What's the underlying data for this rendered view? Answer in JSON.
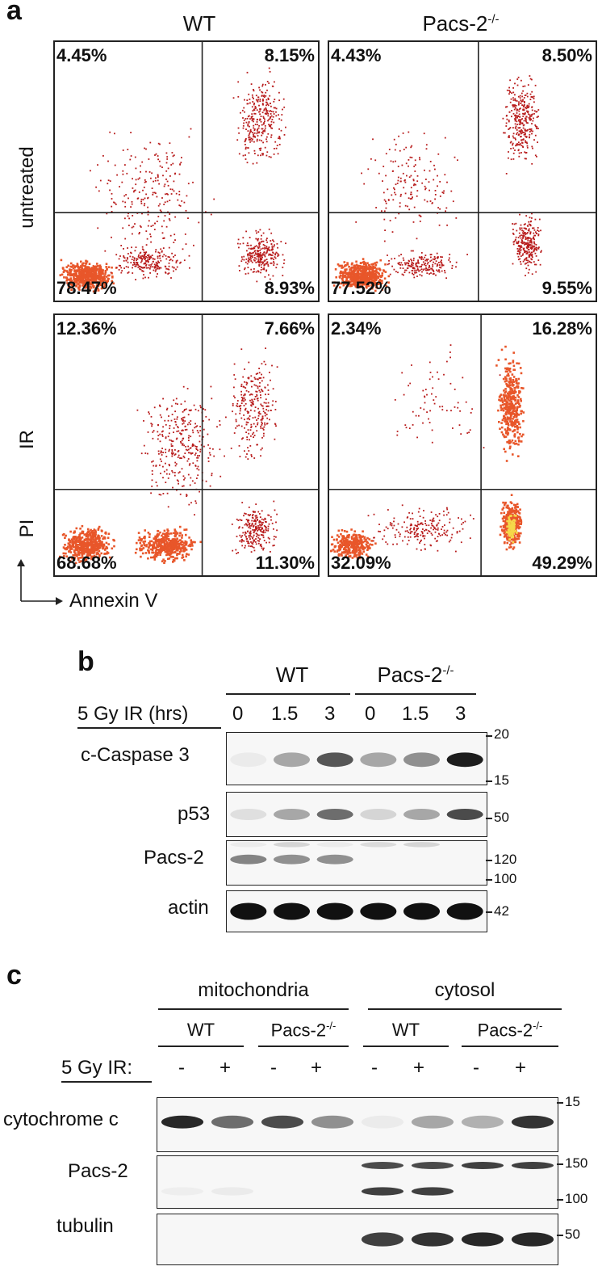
{
  "panel_a": {
    "letter": "a",
    "columns": [
      "WT",
      "Pacs-2"
    ],
    "column_superscript": "-/-",
    "rows": [
      "untreated",
      "IR"
    ],
    "y_axis": "PI",
    "x_axis": "Annexin V",
    "plots": [
      {
        "id": "wt-untreated",
        "tl": "4.45%",
        "tr": "8.15%",
        "bl": "78.47%",
        "br": "8.93%"
      },
      {
        "id": "ko-untreated",
        "tl": "4.43%",
        "tr": "8.50%",
        "bl": "77.52%",
        "br": "9.55%"
      },
      {
        "id": "wt-ir",
        "tl": "12.36%",
        "tr": "7.66%",
        "bl": "68.68%",
        "br": "11.30%"
      },
      {
        "id": "ko-ir",
        "tl": "2.34%",
        "tr": "16.28%",
        "bl": "32.09%",
        "br": "49.29%"
      }
    ],
    "dot_color": "#b81c1c",
    "dense_color": "#e8562a",
    "hot_color": "#f5d84a"
  },
  "panel_b": {
    "letter": "b",
    "group_wt": "WT",
    "group_ko": "Pacs-2",
    "group_ko_sup": "-/-",
    "condition_label": "5 Gy IR (hrs)",
    "timepoints": [
      "0",
      "1.5",
      "3",
      "0",
      "1.5",
      "3"
    ],
    "rows": [
      {
        "label": "c-Caspase 3",
        "markers": [
          "20",
          "15"
        ]
      },
      {
        "label": "p53",
        "markers": [
          "50"
        ]
      },
      {
        "label": "Pacs-2",
        "markers": [
          "120",
          "100"
        ]
      },
      {
        "label": "actin",
        "markers": [
          "42"
        ]
      }
    ]
  },
  "panel_c": {
    "letter": "c",
    "fraction_1": "mitochondria",
    "fraction_2": "cytosol",
    "genotypes": [
      "WT",
      "Pacs-2",
      "WT",
      "Pacs-2"
    ],
    "genotype_sup": "-/-",
    "condition_label": "5 Gy IR:",
    "signs": [
      "-",
      "+",
      "-",
      "+",
      "-",
      "+",
      "-",
      "+"
    ],
    "rows": [
      {
        "label": "cytochrome c",
        "markers": [
          "15"
        ]
      },
      {
        "label": "Pacs-2",
        "markers": [
          "150",
          "100"
        ]
      },
      {
        "label": "tubulin",
        "markers": [
          "50"
        ]
      }
    ]
  }
}
